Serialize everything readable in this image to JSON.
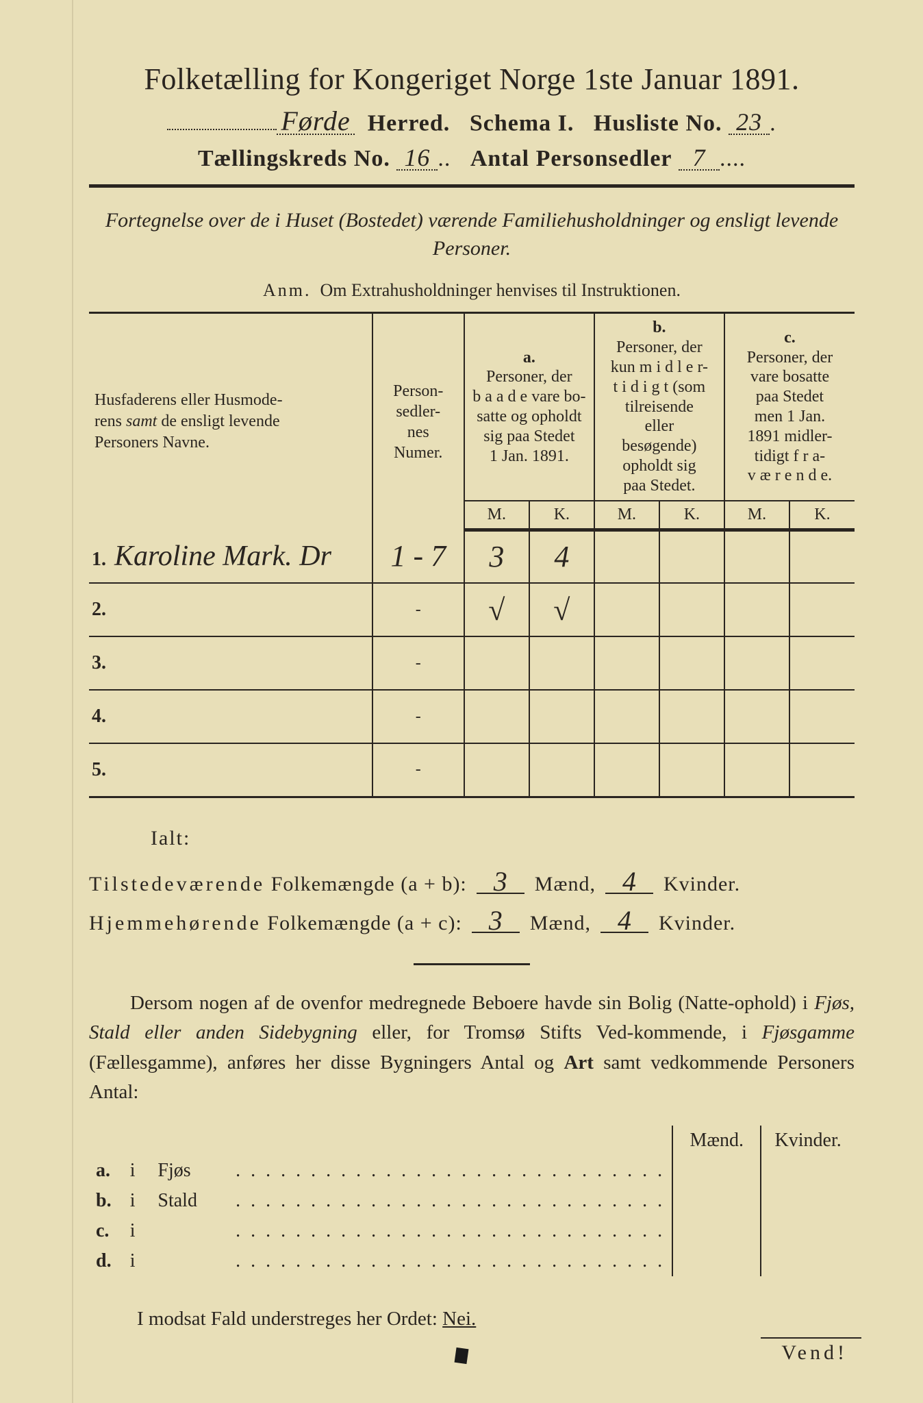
{
  "header": {
    "title": "Folketælling for Kongeriget Norge 1ste Januar 1891.",
    "herred_value": "Førde",
    "herred_label": "Herred.",
    "schema_label": "Schema I.",
    "husliste_label": "Husliste No.",
    "husliste_value": "23",
    "kreds_label": "Tællingskreds No.",
    "kreds_value": "16",
    "antal_label": "Antal Personsedler",
    "antal_value": "7"
  },
  "subtitle": "Fortegnelse over de i Huset (Bostedet) værende Familiehusholdninger og ensligt levende Personer.",
  "anm_lead": "Anm.",
  "anm_text": "Om Extrahusholdninger henvises til Instruktionen.",
  "columns": {
    "name": "Husfaderens eller Husmoderens samt de ensligt levende Personers Navne.",
    "numer": "Person-sedler-nes Numer.",
    "a_label": "a.",
    "a_text": "Personer, der baade vare bosatte og opholdt sig paa Stedet 1 Jan. 1891.",
    "b_label": "b.",
    "b_text": "Personer, der kun midlertidigt (som tilreisende eller besøgende) opholdt sig paa Stedet.",
    "c_label": "c.",
    "c_text": "Personer, der vare bosatte paa Stedet men 1 Jan. 1891 midlertidigt fraværende.",
    "m": "M.",
    "k": "K."
  },
  "rows": [
    {
      "n": "1.",
      "name": "Karoline Mark. Dr",
      "numer": "1 - 7",
      "a_m": "3",
      "a_k": "4",
      "b_m": "",
      "b_k": "",
      "c_m": "",
      "c_k": ""
    },
    {
      "n": "2.",
      "name": "",
      "numer": "-",
      "a_m": "√",
      "a_k": "√",
      "b_m": "",
      "b_k": "",
      "c_m": "",
      "c_k": ""
    },
    {
      "n": "3.",
      "name": "",
      "numer": "-",
      "a_m": "",
      "a_k": "",
      "b_m": "",
      "b_k": "",
      "c_m": "",
      "c_k": ""
    },
    {
      "n": "4.",
      "name": "",
      "numer": "-",
      "a_m": "",
      "a_k": "",
      "b_m": "",
      "b_k": "",
      "c_m": "",
      "c_k": ""
    },
    {
      "n": "5.",
      "name": "",
      "numer": "-",
      "a_m": "",
      "a_k": "",
      "b_m": "",
      "b_k": "",
      "c_m": "",
      "c_k": ""
    }
  ],
  "totals": {
    "ialt": "Ialt:",
    "line1_a": "Tilstedeværende Folkemængde (a + b):",
    "line1_m": "3",
    "maend": "Mænd,",
    "line1_k": "4",
    "kvinder": "Kvinder.",
    "line2_a": "Hjemmehørende Folkemængde (a + c):",
    "line2_m": "3",
    "line2_k": "4"
  },
  "para": "Dersom nogen af de ovenfor medregnede Beboere havde sin Bolig (Natteophold) i Fjøs, Stald eller anden Sidebygning eller, for Tromsø Stifts Vedkommende, i Fjøsgamme (Fællesgamme), anføres her disse Bygningers Antal og Art samt vedkommende Personers Antal:",
  "bottom": {
    "maend": "Mænd.",
    "kvinder": "Kvinder.",
    "rows": [
      {
        "l": "a.",
        "i": "i",
        "w": "Fjøs"
      },
      {
        "l": "b.",
        "i": "i",
        "w": "Stald"
      },
      {
        "l": "c.",
        "i": "i",
        "w": ""
      },
      {
        "l": "d.",
        "i": "i",
        "w": ""
      }
    ]
  },
  "modsat": "I modsat Fald understreges her Ordet:",
  "nei": "Nei.",
  "vend": "Vend!"
}
